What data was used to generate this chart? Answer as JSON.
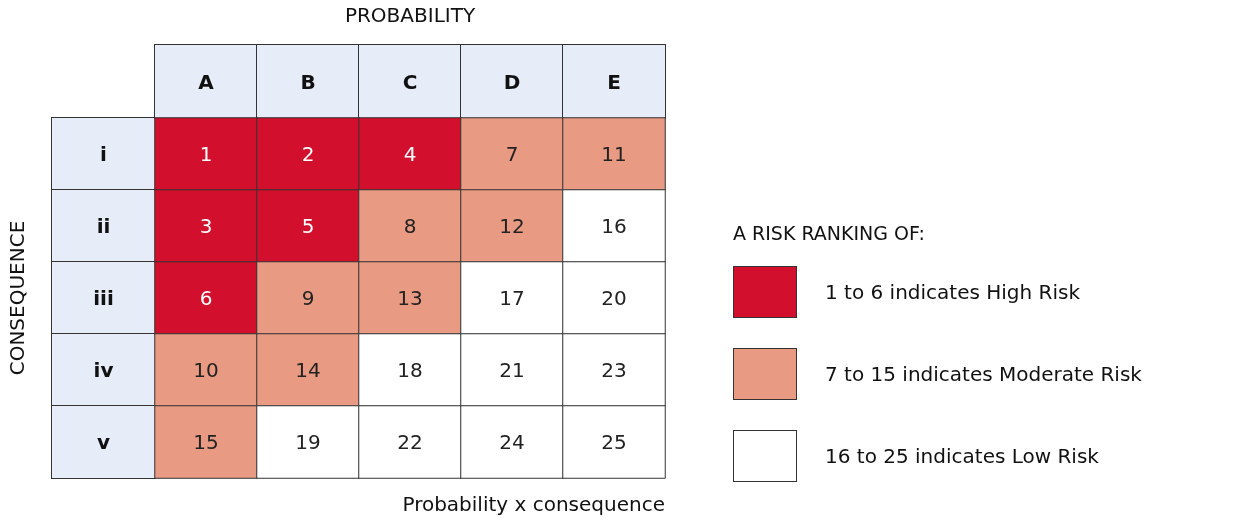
{
  "chart_data": {
    "type": "heatmap",
    "xlabel": "PROBABILITY",
    "ylabel": "CONSEQUENCE",
    "legend_title": "A RISK RANKING OF:",
    "annotations": [
      "Probability x consequence",
      "1 to 6 indicates High Risk",
      "7 to 15 indicates Moderate Risk",
      "16 to 25 indicates Low Risk"
    ],
    "categories": [
      "A",
      "B",
      "C",
      "D",
      "E"
    ],
    "y_categories": [
      "i",
      "ii",
      "iii",
      "iv",
      "v"
    ],
    "cells": [
      [
        1,
        2,
        4,
        7,
        11
      ],
      [
        3,
        5,
        8,
        12,
        16
      ],
      [
        6,
        9,
        13,
        17,
        20
      ],
      [
        10,
        14,
        18,
        21,
        23
      ],
      [
        15,
        19,
        22,
        24,
        25
      ]
    ],
    "colors": [
      [
        "#d20f2c",
        "#d20f2c",
        "#d20f2c",
        "#e99a83",
        "#e99a83"
      ],
      [
        "#d20f2c",
        "#d20f2c",
        "#e99a83",
        "#e99a83",
        "#ffffff"
      ],
      [
        "#d20f2c",
        "#e99a83",
        "#e99a83",
        "#ffffff",
        "#ffffff"
      ],
      [
        "#e99a83",
        "#e99a83",
        "#ffffff",
        "#ffffff",
        "#ffffff"
      ],
      [
        "#e99a83",
        "#ffffff",
        "#ffffff",
        "#ffffff",
        "#ffffff"
      ]
    ],
    "data_labels": true
  }
}
